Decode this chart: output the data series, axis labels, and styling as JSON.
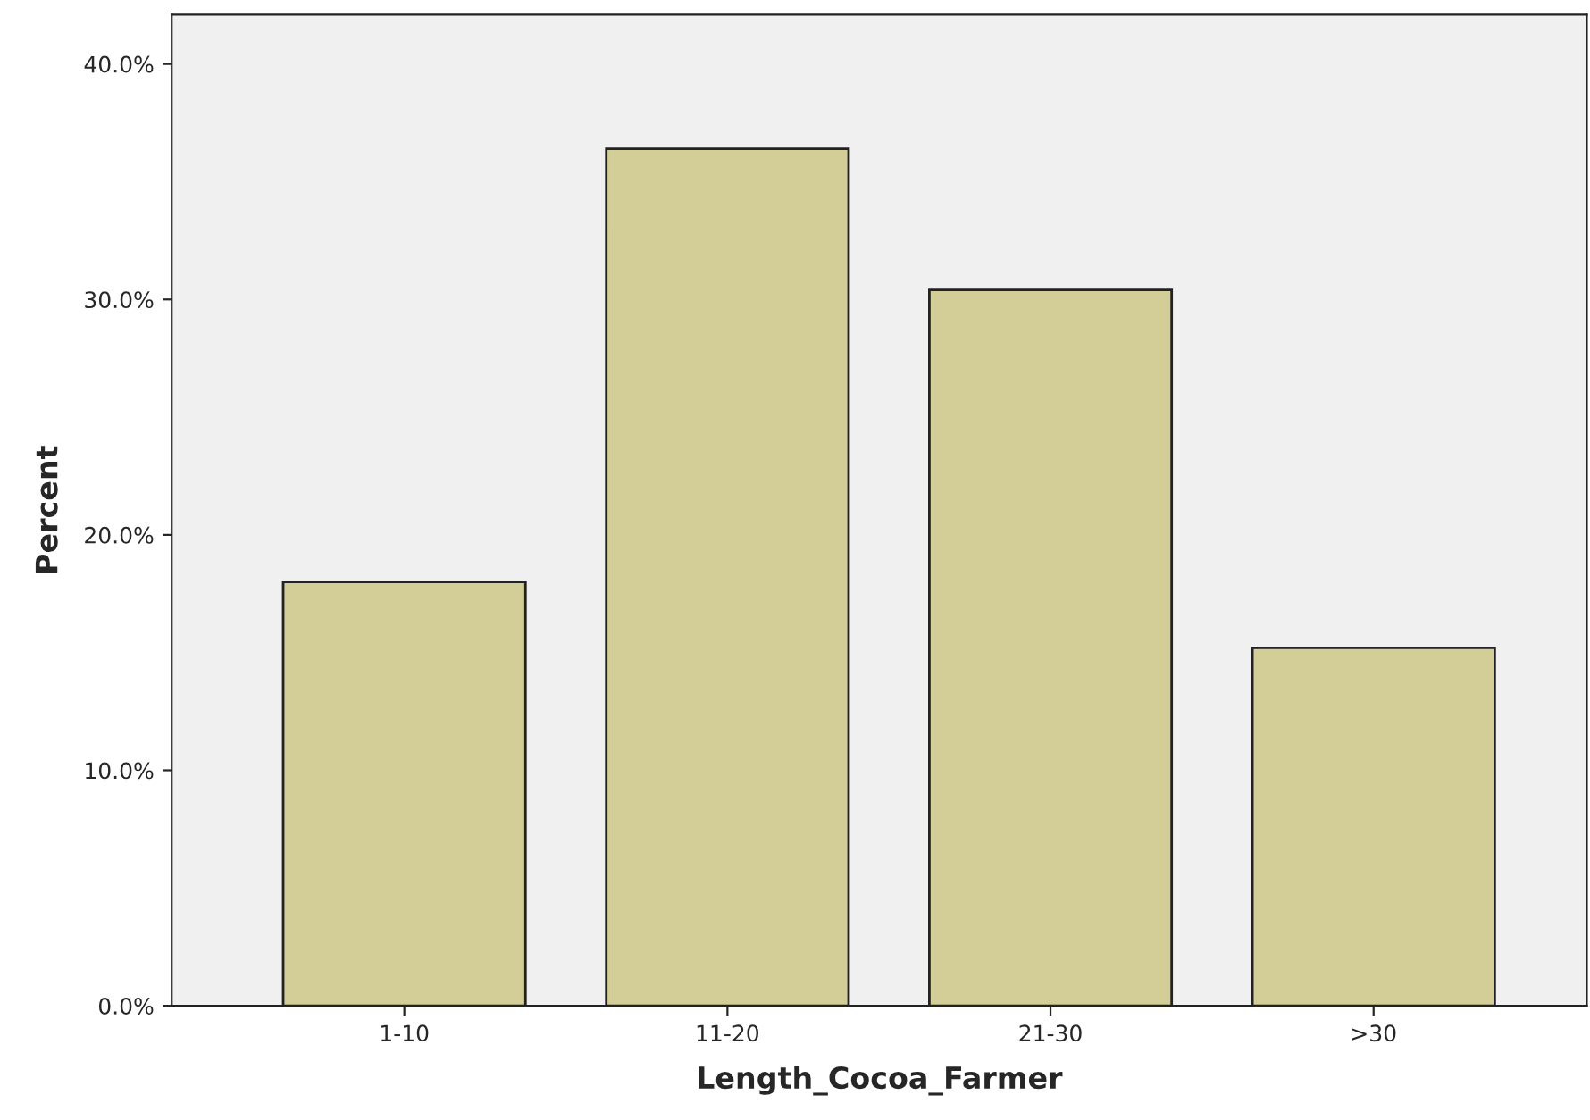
{
  "chart_data": {
    "type": "bar",
    "xlabel": "Length_Cocoa_Farmer",
    "ylabel": "Percent",
    "categories": [
      "1-10",
      "11-20",
      "21-30",
      ">30"
    ],
    "values": [
      18.0,
      36.4,
      30.4,
      15.2
    ],
    "color": "#d3cd97",
    "ylim": [
      0,
      42.1
    ],
    "yticks": [
      {
        "value": 0,
        "label": "0.0%"
      },
      {
        "value": 10,
        "label": "10.0%"
      },
      {
        "value": 20,
        "label": "20.0%"
      },
      {
        "value": 30,
        "label": "30.0%"
      },
      {
        "value": 40,
        "label": "40.0%"
      }
    ],
    "grid": false,
    "legend": false
  }
}
